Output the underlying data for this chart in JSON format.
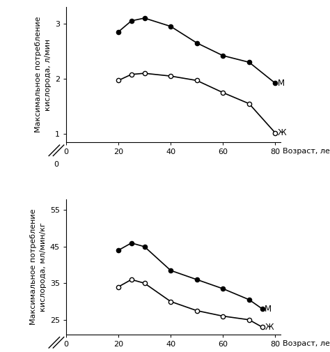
{
  "top": {
    "m_x": [
      20,
      25,
      30,
      40,
      50,
      60,
      70,
      80
    ],
    "m_y": [
      2.85,
      3.05,
      3.1,
      2.95,
      2.65,
      2.42,
      2.3,
      1.92
    ],
    "f_x": [
      20,
      25,
      30,
      40,
      50,
      60,
      70,
      80
    ],
    "f_y": [
      1.97,
      2.08,
      2.1,
      2.05,
      1.97,
      1.75,
      1.55,
      1.02
    ],
    "ylabel1": "Максимальное потребление",
    "ylabel2": "кислорода, л/мин",
    "yticks": [
      1,
      2,
      3
    ],
    "ylim_data": [
      0.85,
      3.3
    ],
    "ylim_break": 0.7,
    "m_label": "М",
    "f_label": "Ж",
    "xlim": [
      0,
      82
    ],
    "xticks": [
      0,
      20,
      40,
      60,
      80
    ]
  },
  "bot": {
    "m_x": [
      20,
      25,
      30,
      40,
      50,
      60,
      70,
      75
    ],
    "m_y": [
      44.0,
      46.0,
      45.0,
      38.5,
      36.0,
      33.5,
      30.5,
      28.0
    ],
    "f_x": [
      20,
      25,
      30,
      40,
      50,
      60,
      70,
      75
    ],
    "f_y": [
      34.0,
      36.0,
      35.0,
      30.0,
      27.5,
      26.0,
      25.0,
      23.0
    ],
    "ylabel1": "Максимальное потребление",
    "ylabel2": "кислорода, мл/мин/кг",
    "yticks": [
      25,
      35,
      45,
      55
    ],
    "ylim_data": [
      21,
      58
    ],
    "ylim_break": 17,
    "m_label": "М",
    "f_label": "Ж",
    "xlim": [
      0,
      82
    ],
    "xticks": [
      0,
      20,
      40,
      60,
      80
    ]
  },
  "xlabel": "Возраст, лет",
  "line_color": "#000000",
  "bg_color": "#ffffff",
  "fontsize": 8.5
}
